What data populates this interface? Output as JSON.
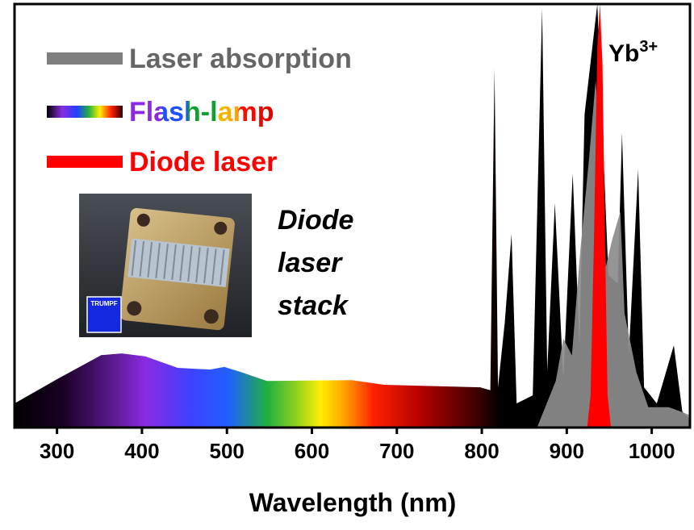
{
  "chart_data": {
    "type": "area",
    "xlabel": "Wavelength (nm)",
    "xlim": [
      250,
      1045
    ],
    "xticks": [
      300,
      400,
      500,
      600,
      700,
      800,
      900,
      1000
    ],
    "ylim": [
      0,
      100
    ],
    "series": [
      {
        "name": "Laser absorption",
        "color": "#7f7f7f",
        "x": [
          865,
          887,
          896,
          906,
          916,
          926,
          934,
          940,
          946,
          953,
          963,
          968,
          982,
          996,
          1020,
          1034,
          1045
        ],
        "values": [
          0,
          11,
          21,
          17,
          42,
          63,
          82,
          63,
          38,
          44,
          51,
          27,
          13,
          4.8,
          4.8,
          3.8,
          2.9
        ]
      },
      {
        "name": "Flash-lamp",
        "x": [
          250,
          300,
          352,
          376,
          404,
          442,
          480,
          497,
          518,
          547,
          647,
          685,
          798,
          810,
          815,
          819,
          827,
          835,
          841,
          860,
          871,
          877,
          886,
          896,
          907,
          915,
          921,
          936,
          949,
          960,
          965,
          973,
          984,
          991,
          1006,
          1026,
          1036,
          1045
        ],
        "values": [
          5.7,
          11.4,
          17.1,
          17.5,
          16.8,
          14.1,
          13.7,
          14.3,
          13,
          11,
          11.2,
          10.1,
          9.5,
          8.8,
          84.8,
          9.5,
          24.8,
          45.7,
          5.7,
          7.6,
          99,
          13.3,
          53,
          11.4,
          60,
          19,
          74,
          100,
          36,
          34,
          69.5,
          17,
          61,
          9.5,
          5.7,
          19.4,
          3.8,
          1.9
        ]
      },
      {
        "name": "Diode laser",
        "color": "#ff0000",
        "x": [
          924,
          928,
          932,
          936,
          939,
          942,
          945,
          948,
          952
        ],
        "values": [
          0,
          7.6,
          44,
          89.5,
          100,
          85.7,
          44,
          7.6,
          0
        ]
      }
    ],
    "ion_label": {
      "base": "Yb",
      "sup": "3+"
    },
    "photo_caption": [
      "Diode",
      "laser",
      "stack"
    ],
    "photo_logo": "TRUMPF"
  }
}
